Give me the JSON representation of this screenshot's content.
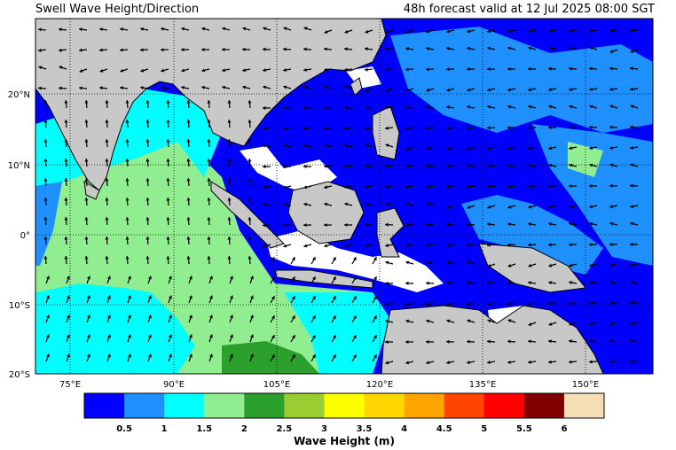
{
  "header": {
    "title_left": "Swell Wave Height/Direction",
    "title_right": "48h forecast valid at 12 Jul 2025 08:00 SGT"
  },
  "axes": {
    "lat_ticks": [
      "20°N",
      "10°N",
      "0°",
      "10°S",
      "20°S"
    ],
    "lon_ticks": [
      "75°E",
      "90°E",
      "105°E",
      "120°E",
      "135°E",
      "150°E"
    ]
  },
  "colorbar": {
    "title": "Wave Height (m)",
    "labels": [
      "0.5",
      "1",
      "1.5",
      "2",
      "2.5",
      "3",
      "3.5",
      "4",
      "4.5",
      "5",
      "5.5",
      "6"
    ],
    "colors": [
      "#0000ff",
      "#1e90ff",
      "#00ffff",
      "#90ee90",
      "#2ca02c",
      "#9acd32",
      "#ffff00",
      "#ffd700",
      "#ffa500",
      "#ff4500",
      "#ff0000",
      "#800000",
      "#f5deb3"
    ]
  },
  "chart_data": {
    "type": "heatmap",
    "title": "Swell Wave Height/Direction",
    "subtitle": "48h forecast valid at 12 Jul 2025 08:00 SGT",
    "x_ticks": [
      "75°E",
      "90°E",
      "105°E",
      "120°E",
      "135°E",
      "150°E"
    ],
    "y_ticks": [
      "20°N",
      "10°N",
      "0°",
      "10°S",
      "20°S"
    ],
    "colorbar_label": "Wave Height (m)",
    "colorbar_levels": [
      0.5,
      1,
      1.5,
      2,
      2.5,
      3,
      3.5,
      4,
      4.5,
      5,
      5.5,
      6
    ],
    "grid": true
  }
}
